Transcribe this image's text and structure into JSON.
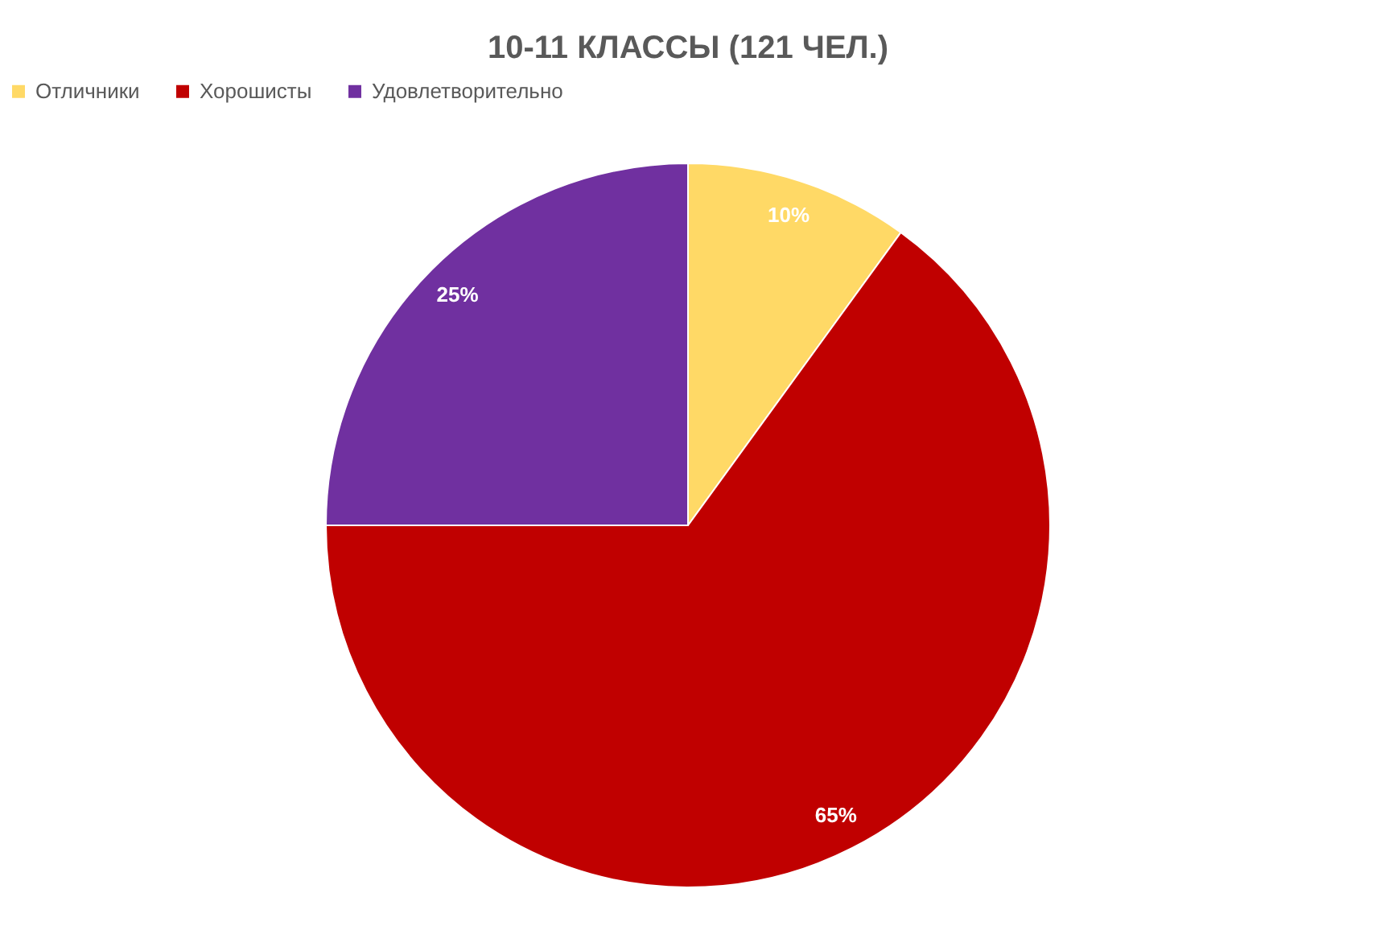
{
  "chart_data": {
    "type": "pie",
    "title": "10-11 КЛАССЫ (121 ЧЕЛ.)",
    "categories": [
      "Отличники",
      "Хорошисты",
      "Удовлетворительно"
    ],
    "values": [
      10,
      65,
      25
    ],
    "colors": [
      "#ffd966",
      "#c00000",
      "#7030a0"
    ],
    "value_labels": [
      "10%",
      "65%",
      "25%"
    ],
    "legend": "top"
  }
}
